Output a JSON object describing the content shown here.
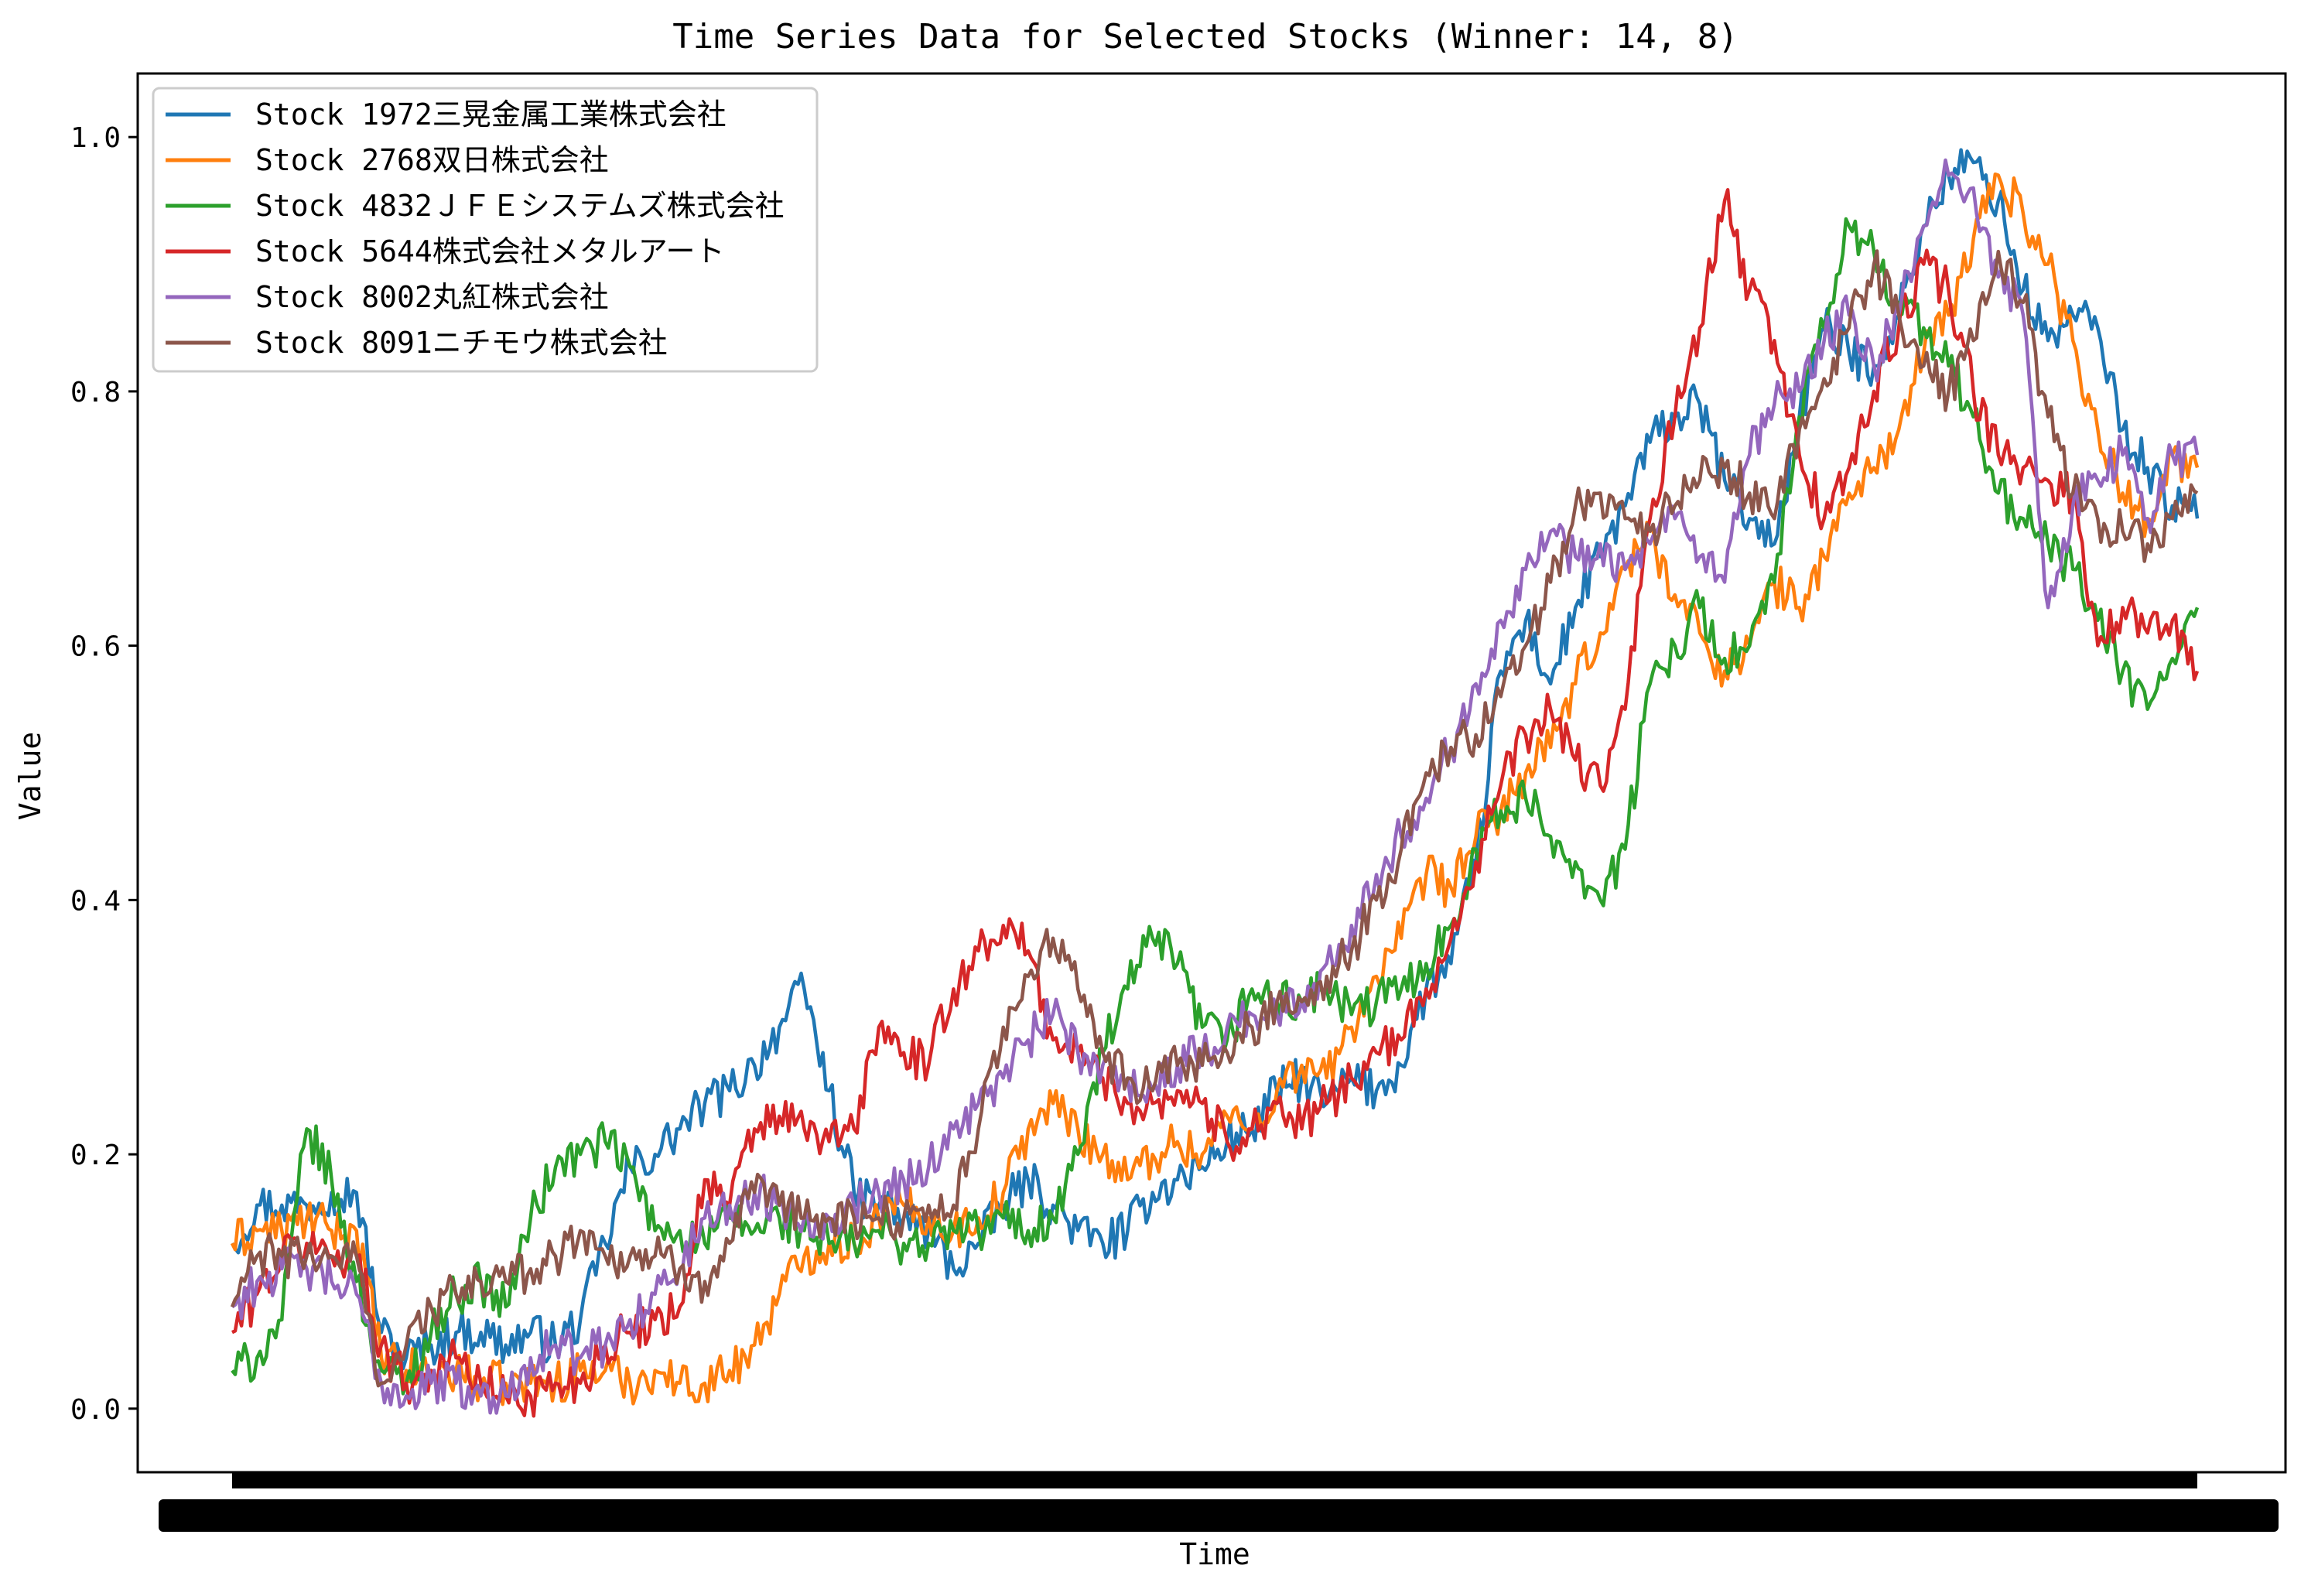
{
  "chart_data": {
    "type": "line",
    "title": "Time Series Data for Selected Stocks (Winner: 14, 8)",
    "xlabel": "Time",
    "ylabel": "Value",
    "ylim": [
      -0.05,
      1.05
    ],
    "yticks": [
      "0.0",
      "0.2",
      "0.4",
      "0.6",
      "0.8",
      "1.0"
    ],
    "ytick_values": [
      0.0,
      0.2,
      0.4,
      0.6,
      0.8,
      1.0
    ],
    "x_count": 80,
    "grid": false,
    "legend_position": "upper-left",
    "series": [
      {
        "name": "Stock 1972三晃金属工業株式会社",
        "color": "#1f77b4",
        "values": [
          0.13,
          0.16,
          0.16,
          0.16,
          0.17,
          0.17,
          0.06,
          0.04,
          0.05,
          0.06,
          0.06,
          0.05,
          0.06,
          0.05,
          0.07,
          0.13,
          0.19,
          0.2,
          0.22,
          0.24,
          0.25,
          0.27,
          0.3,
          0.33,
          0.25,
          0.17,
          0.16,
          0.15,
          0.14,
          0.11,
          0.13,
          0.16,
          0.18,
          0.16,
          0.14,
          0.13,
          0.14,
          0.17,
          0.18,
          0.19,
          0.21,
          0.22,
          0.25,
          0.26,
          0.24,
          0.26,
          0.25,
          0.27,
          0.33,
          0.35,
          0.43,
          0.58,
          0.62,
          0.57,
          0.63,
          0.67,
          0.71,
          0.76,
          0.78,
          0.79,
          0.73,
          0.7,
          0.68,
          0.78,
          0.85,
          0.83,
          0.82,
          0.86,
          0.93,
          0.97,
          0.98,
          0.95,
          0.88,
          0.84,
          0.86,
          0.85,
          0.77,
          0.74,
          0.71,
          0.7
        ]
      },
      {
        "name": "Stock 2768双日株式会社",
        "color": "#ff7f0e",
        "values": [
          0.13,
          0.14,
          0.14,
          0.15,
          0.14,
          0.14,
          0.04,
          0.03,
          0.03,
          0.03,
          0.02,
          0.02,
          0.02,
          0.02,
          0.03,
          0.03,
          0.02,
          0.03,
          0.02,
          0.02,
          0.03,
          0.05,
          0.09,
          0.12,
          0.13,
          0.13,
          0.15,
          0.16,
          0.15,
          0.14,
          0.15,
          0.17,
          0.22,
          0.24,
          0.22,
          0.2,
          0.18,
          0.2,
          0.21,
          0.2,
          0.23,
          0.22,
          0.25,
          0.27,
          0.26,
          0.3,
          0.34,
          0.37,
          0.42,
          0.41,
          0.45,
          0.47,
          0.5,
          0.52,
          0.57,
          0.61,
          0.66,
          0.69,
          0.64,
          0.61,
          0.58,
          0.6,
          0.65,
          0.63,
          0.67,
          0.72,
          0.74,
          0.77,
          0.83,
          0.86,
          0.92,
          0.97,
          0.94,
          0.9,
          0.84,
          0.77,
          0.72,
          0.7,
          0.75,
          0.74
        ]
      },
      {
        "name": "Stock 4832ＪＦＥシステムズ株式会社",
        "color": "#2ca02c",
        "values": [
          0.03,
          0.04,
          0.07,
          0.22,
          0.18,
          0.1,
          0.03,
          0.02,
          0.06,
          0.09,
          0.1,
          0.08,
          0.15,
          0.19,
          0.2,
          0.21,
          0.19,
          0.14,
          0.14,
          0.13,
          0.15,
          0.14,
          0.15,
          0.14,
          0.13,
          0.13,
          0.14,
          0.13,
          0.13,
          0.14,
          0.14,
          0.15,
          0.14,
          0.15,
          0.2,
          0.28,
          0.33,
          0.37,
          0.35,
          0.3,
          0.29,
          0.33,
          0.32,
          0.32,
          0.33,
          0.31,
          0.32,
          0.33,
          0.35,
          0.38,
          0.44,
          0.47,
          0.48,
          0.45,
          0.43,
          0.4,
          0.44,
          0.57,
          0.6,
          0.63,
          0.59,
          0.6,
          0.65,
          0.78,
          0.85,
          0.93,
          0.91,
          0.87,
          0.85,
          0.82,
          0.78,
          0.72,
          0.7,
          0.68,
          0.66,
          0.62,
          0.58,
          0.55,
          0.59,
          0.63
        ]
      },
      {
        "name": "Stock 5644株式会社メタルアート",
        "color": "#d62728",
        "values": [
          0.06,
          0.09,
          0.12,
          0.13,
          0.12,
          0.12,
          0.05,
          0.02,
          0.03,
          0.04,
          0.02,
          0.01,
          0.01,
          0.02,
          0.02,
          0.05,
          0.06,
          0.07,
          0.08,
          0.18,
          0.16,
          0.22,
          0.23,
          0.22,
          0.21,
          0.22,
          0.3,
          0.28,
          0.27,
          0.33,
          0.36,
          0.38,
          0.36,
          0.29,
          0.28,
          0.26,
          0.24,
          0.24,
          0.25,
          0.24,
          0.21,
          0.22,
          0.24,
          0.22,
          0.24,
          0.26,
          0.28,
          0.29,
          0.33,
          0.37,
          0.43,
          0.49,
          0.53,
          0.55,
          0.51,
          0.49,
          0.55,
          0.7,
          0.78,
          0.85,
          0.95,
          0.88,
          0.84,
          0.75,
          0.7,
          0.74,
          0.8,
          0.85,
          0.9,
          0.88,
          0.8,
          0.75,
          0.74,
          0.73,
          0.72,
          0.6,
          0.63,
          0.61,
          0.62,
          0.58
        ]
      },
      {
        "name": "Stock 8002丸紅株式会社",
        "color": "#9467bd",
        "values": [
          0.08,
          0.1,
          0.11,
          0.11,
          0.1,
          0.09,
          0.02,
          0.01,
          0.02,
          0.02,
          0.01,
          0.01,
          0.04,
          0.05,
          0.04,
          0.05,
          0.07,
          0.09,
          0.11,
          0.15,
          0.16,
          0.17,
          0.16,
          0.15,
          0.15,
          0.16,
          0.17,
          0.18,
          0.19,
          0.22,
          0.24,
          0.26,
          0.29,
          0.31,
          0.28,
          0.27,
          0.26,
          0.25,
          0.27,
          0.28,
          0.3,
          0.31,
          0.31,
          0.32,
          0.35,
          0.38,
          0.42,
          0.45,
          0.48,
          0.52,
          0.57,
          0.62,
          0.66,
          0.69,
          0.67,
          0.68,
          0.66,
          0.68,
          0.7,
          0.67,
          0.65,
          0.75,
          0.79,
          0.8,
          0.84,
          0.86,
          0.82,
          0.86,
          0.93,
          0.97,
          0.96,
          0.89,
          0.86,
          0.63,
          0.71,
          0.73,
          0.75,
          0.7,
          0.75,
          0.75
        ]
      },
      {
        "name": "Stock 8091ニチモウ株式会社",
        "color": "#8c564b",
        "values": [
          0.08,
          0.12,
          0.12,
          0.12,
          0.12,
          0.12,
          0.02,
          0.05,
          0.08,
          0.09,
          0.1,
          0.1,
          0.11,
          0.12,
          0.14,
          0.12,
          0.12,
          0.12,
          0.11,
          0.1,
          0.13,
          0.17,
          0.16,
          0.15,
          0.15,
          0.15,
          0.15,
          0.15,
          0.16,
          0.16,
          0.22,
          0.3,
          0.34,
          0.37,
          0.33,
          0.28,
          0.26,
          0.25,
          0.27,
          0.27,
          0.28,
          0.3,
          0.32,
          0.32,
          0.34,
          0.36,
          0.4,
          0.44,
          0.5,
          0.52,
          0.53,
          0.56,
          0.6,
          0.65,
          0.71,
          0.72,
          0.7,
          0.69,
          0.71,
          0.73,
          0.74,
          0.72,
          0.7,
          0.77,
          0.81,
          0.85,
          0.9,
          0.86,
          0.82,
          0.8,
          0.84,
          0.91,
          0.87,
          0.78,
          0.72,
          0.7,
          0.69,
          0.68,
          0.7,
          0.72
        ]
      }
    ]
  }
}
